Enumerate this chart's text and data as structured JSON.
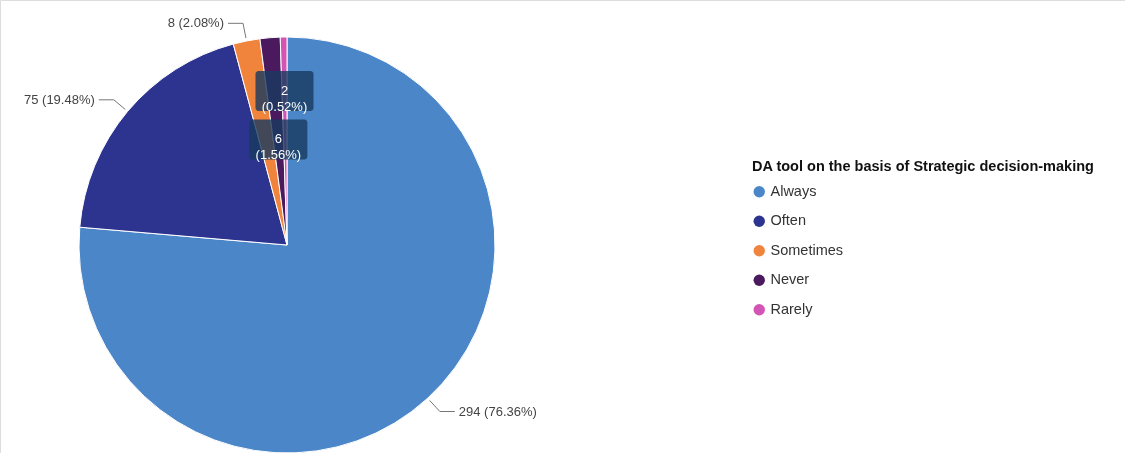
{
  "chart_data": {
    "type": "pie",
    "legend_title": "DA tool on the basis of Strategic decision-making",
    "categories": [
      "Always",
      "Often",
      "Sometimes",
      "Never",
      "Rarely"
    ],
    "values": [
      294,
      75,
      8,
      6,
      2
    ],
    "colors": [
      "#4a86c8",
      "#2c348f",
      "#f0843c",
      "#4b1a5e",
      "#d354b4"
    ],
    "value_labels": [
      "294 (76.36%)",
      "75 (19.48%)",
      "8 (2.08%)",
      "6 (1.56%)",
      "2 (0.52%)"
    ],
    "legend": "right"
  }
}
